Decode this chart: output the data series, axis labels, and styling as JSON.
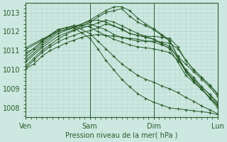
{
  "title": "Pression niveau de la mer( hPa )",
  "xlim": [
    0,
    72
  ],
  "ylim": [
    1007.5,
    1013.5
  ],
  "yticks": [
    1008,
    1009,
    1010,
    1011,
    1012,
    1013
  ],
  "xtick_positions": [
    0,
    24,
    48,
    72
  ],
  "xtick_labels": [
    "Ven",
    "Sam",
    "Dim",
    "Lun"
  ],
  "bg_color": "#cce8e0",
  "grid_color": "#aacfc8",
  "line_color": "#2a5c2a",
  "series": [
    [
      0,
      1010.05,
      3,
      1010.3,
      6,
      1010.7,
      9,
      1011.0,
      12,
      1011.2,
      15,
      1011.4,
      18,
      1011.55,
      21,
      1011.7,
      24,
      1011.8,
      27,
      1011.85,
      30,
      1011.8,
      33,
      1011.75,
      36,
      1011.7,
      39,
      1011.65,
      42,
      1011.6,
      45,
      1011.5,
      48,
      1011.45,
      51,
      1011.3,
      54,
      1011.15,
      57,
      1010.7,
      60,
      1010.3,
      63,
      1009.9,
      66,
      1009.5,
      69,
      1009.1,
      72,
      1008.6
    ],
    [
      0,
      1010.1,
      3,
      1010.5,
      6,
      1010.9,
      9,
      1011.2,
      12,
      1011.45,
      15,
      1011.65,
      18,
      1011.8,
      21,
      1011.95,
      24,
      1012.05,
      27,
      1012.2,
      30,
      1012.4,
      33,
      1012.3,
      36,
      1012.1,
      39,
      1011.9,
      42,
      1011.8,
      45,
      1011.7,
      48,
      1011.6,
      51,
      1011.4,
      54,
      1011.25,
      57,
      1010.6,
      60,
      1009.9,
      63,
      1009.5,
      66,
      1009.1,
      69,
      1008.7,
      72,
      1008.3
    ],
    [
      0,
      1010.2,
      3,
      1010.6,
      6,
      1011.0,
      9,
      1011.3,
      12,
      1011.6,
      15,
      1011.85,
      18,
      1012.05,
      21,
      1012.2,
      24,
      1012.3,
      27,
      1012.45,
      30,
      1012.6,
      33,
      1012.5,
      36,
      1012.3,
      39,
      1012.1,
      42,
      1011.9,
      45,
      1011.75,
      48,
      1011.6,
      51,
      1011.35,
      54,
      1011.1,
      57,
      1010.4,
      60,
      1009.7,
      63,
      1009.35,
      66,
      1008.95,
      69,
      1008.55,
      72,
      1008.15
    ],
    [
      0,
      1010.4,
      6,
      1011.15,
      12,
      1011.75,
      18,
      1012.1,
      24,
      1012.5,
      30,
      1013.0,
      33,
      1013.1,
      36,
      1013.2,
      39,
      1012.8,
      42,
      1012.5,
      45,
      1012.3,
      48,
      1012.1,
      51,
      1011.8,
      54,
      1011.5,
      57,
      1010.7,
      60,
      1010.0,
      63,
      1009.4,
      66,
      1009.0,
      69,
      1008.55,
      72,
      1008.1
    ],
    [
      0,
      1010.5,
      6,
      1011.25,
      12,
      1011.9,
      18,
      1012.2,
      24,
      1012.6,
      27,
      1012.85,
      30,
      1013.1,
      33,
      1013.3,
      36,
      1013.3,
      39,
      1013.1,
      42,
      1012.7,
      45,
      1012.4,
      48,
      1012.15,
      51,
      1011.85,
      54,
      1011.55,
      57,
      1010.7,
      60,
      1009.9,
      63,
      1009.4,
      66,
      1009.0,
      69,
      1008.5,
      72,
      1008.0
    ],
    [
      0,
      1010.65,
      6,
      1011.35,
      12,
      1012.0,
      18,
      1012.25,
      24,
      1012.55,
      27,
      1012.6,
      30,
      1012.5,
      33,
      1012.3,
      36,
      1012.15,
      39,
      1011.9,
      42,
      1011.8,
      45,
      1011.75,
      48,
      1011.75,
      51,
      1011.7,
      54,
      1011.65,
      57,
      1011.2,
      60,
      1010.5,
      63,
      1010.0,
      66,
      1009.6,
      69,
      1009.2,
      72,
      1008.75
    ],
    [
      0,
      1010.8,
      6,
      1011.45,
      12,
      1012.1,
      18,
      1012.3,
      24,
      1012.4,
      27,
      1012.25,
      30,
      1012.1,
      33,
      1011.85,
      36,
      1011.7,
      39,
      1011.6,
      42,
      1011.5,
      45,
      1011.5,
      48,
      1011.5,
      51,
      1011.45,
      54,
      1011.4,
      57,
      1011.1,
      60,
      1010.5,
      63,
      1010.0,
      66,
      1009.6,
      69,
      1009.2,
      72,
      1008.7
    ],
    [
      0,
      1010.9,
      3,
      1011.1,
      6,
      1011.5,
      9,
      1011.8,
      12,
      1012.1,
      15,
      1012.2,
      18,
      1012.3,
      21,
      1012.3,
      24,
      1012.25,
      27,
      1012.0,
      30,
      1011.8,
      33,
      1011.6,
      36,
      1011.45,
      39,
      1011.3,
      42,
      1011.2,
      45,
      1011.15,
      48,
      1011.1,
      51,
      1011.0,
      54,
      1010.9,
      57,
      1010.5,
      60,
      1010.0,
      63,
      1009.6,
      66,
      1009.1,
      69,
      1008.7,
      72,
      1008.2
    ],
    [
      0,
      1011.05,
      6,
      1011.55,
      12,
      1012.1,
      18,
      1012.3,
      24,
      1011.9,
      27,
      1011.5,
      30,
      1011.1,
      33,
      1010.7,
      36,
      1010.3,
      39,
      1010.0,
      42,
      1009.7,
      45,
      1009.5,
      48,
      1009.35,
      51,
      1009.15,
      54,
      1009.0,
      57,
      1008.8,
      60,
      1008.55,
      63,
      1008.35,
      66,
      1008.1,
      69,
      1007.9,
      72,
      1007.7
    ],
    [
      0,
      1011.15,
      6,
      1011.6,
      12,
      1012.0,
      18,
      1012.2,
      24,
      1011.65,
      27,
      1011.1,
      30,
      1010.5,
      33,
      1010.0,
      36,
      1009.5,
      39,
      1009.1,
      42,
      1008.75,
      45,
      1008.5,
      48,
      1008.3,
      51,
      1008.15,
      54,
      1008.0,
      57,
      1007.95,
      60,
      1007.9,
      63,
      1007.85,
      66,
      1007.8,
      69,
      1007.75,
      72,
      1007.65
    ]
  ]
}
